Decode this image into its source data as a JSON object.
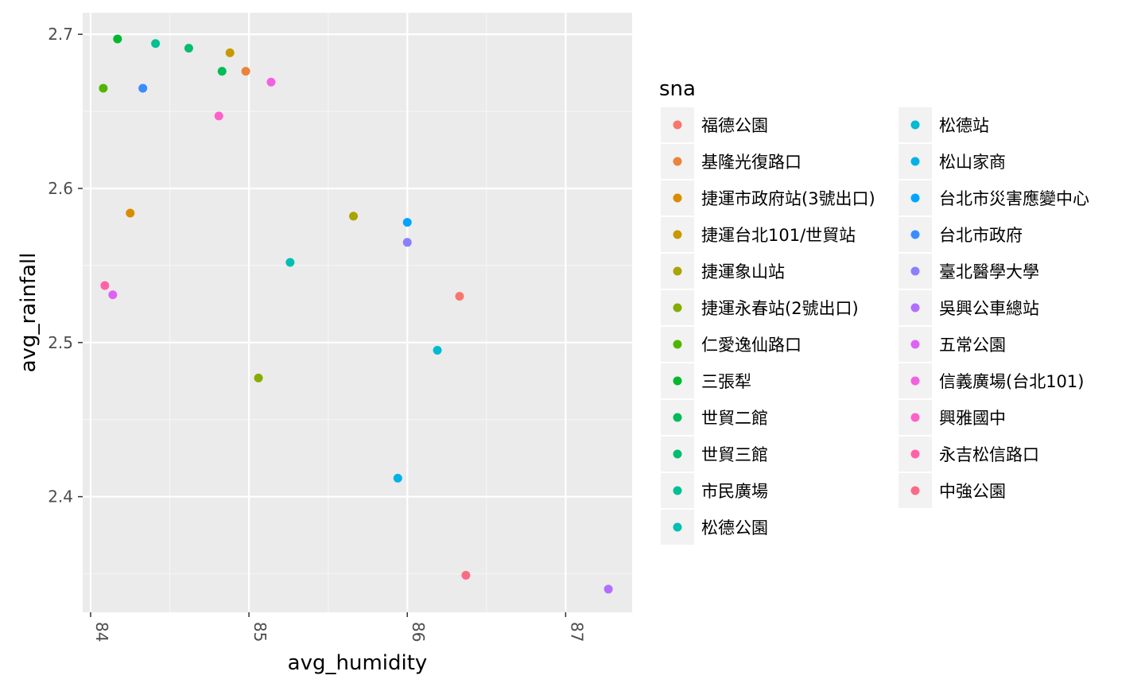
{
  "chart_data": {
    "type": "scatter",
    "xlabel": "avg_humidity",
    "ylabel": "avg_rainfall",
    "xlim": [
      83.95,
      87.42
    ],
    "ylim": [
      2.325,
      2.714
    ],
    "x_ticks": [
      84,
      85,
      86,
      87
    ],
    "y_ticks": [
      2.4,
      2.5,
      2.6,
      2.7
    ],
    "grid": true,
    "legend": {
      "title": "sna",
      "placement": "right",
      "columns": 2
    },
    "series": [
      {
        "name": "福德公園",
        "color": "#F8766D",
        "points": [
          [
            86.33,
            2.53
          ]
        ]
      },
      {
        "name": "基隆光復路口",
        "color": "#EC823C",
        "points": [
          [
            84.98,
            2.676
          ]
        ]
      },
      {
        "name": "捷運市政府站(3號出口)",
        "color": "#DA8C00",
        "points": [
          [
            84.25,
            2.584
          ]
        ]
      },
      {
        "name": "捷運台北101/世貿站",
        "color": "#C49A00",
        "points": [
          [
            84.88,
            2.688
          ]
        ]
      },
      {
        "name": "捷運象山站",
        "color": "#A9A400",
        "points": [
          [
            85.66,
            2.582
          ]
        ]
      },
      {
        "name": "捷運永春站(2號出口)",
        "color": "#86AC00",
        "points": [
          [
            85.06,
            2.477
          ]
        ]
      },
      {
        "name": "仁愛逸仙路口",
        "color": "#53B400",
        "points": [
          [
            84.08,
            2.665
          ]
        ]
      },
      {
        "name": "三張犁",
        "color": "#00B82B",
        "points": [
          [
            84.17,
            2.697
          ]
        ]
      },
      {
        "name": "世貿二館",
        "color": "#00BC56",
        "points": [
          [
            84.83,
            2.676
          ]
        ]
      },
      {
        "name": "世貿三館",
        "color": "#00BE6F",
        "points": [
          [
            84.62,
            2.691
          ]
        ]
      },
      {
        "name": "市民廣場",
        "color": "#00C094",
        "points": [
          [
            84.41,
            2.694
          ]
        ]
      },
      {
        "name": "松德公園",
        "color": "#00BFB3",
        "points": [
          [
            85.26,
            2.552
          ]
        ]
      },
      {
        "name": "松德站",
        "color": "#00BAD3",
        "points": [
          [
            86.19,
            2.495
          ]
        ]
      },
      {
        "name": "松山家商",
        "color": "#00B2E7",
        "points": [
          [
            85.94,
            2.412
          ]
        ]
      },
      {
        "name": "台北市災害應變中心",
        "color": "#00A5FF",
        "points": [
          [
            86.0,
            2.578
          ]
        ]
      },
      {
        "name": "台北市政府",
        "color": "#3A8CFF",
        "points": [
          [
            84.33,
            2.665
          ]
        ]
      },
      {
        "name": "臺北醫學大學",
        "color": "#8B7EFF",
        "points": [
          [
            86.0,
            2.565
          ]
        ]
      },
      {
        "name": "吳興公車總站",
        "color": "#B26EFF",
        "points": [
          [
            87.27,
            2.34
          ]
        ]
      },
      {
        "name": "五常公園",
        "color": "#DF63F3",
        "points": [
          [
            84.14,
            2.531
          ]
        ]
      },
      {
        "name": "信義廣場(台北101)",
        "color": "#F261DF",
        "points": [
          [
            85.14,
            2.669
          ]
        ]
      },
      {
        "name": "興雅國中",
        "color": "#FF61C9",
        "points": [
          [
            84.81,
            2.647
          ]
        ]
      },
      {
        "name": "永吉松信路口",
        "color": "#FF62A9",
        "points": [
          [
            84.09,
            2.537
          ]
        ]
      },
      {
        "name": "中強公園",
        "color": "#FC6B86",
        "points": [
          [
            86.37,
            2.349
          ]
        ]
      }
    ]
  },
  "colors": {
    "panel": "#EBEBEB",
    "grid_major": "#FFFFFF",
    "grid_minor": "#F5F5F5",
    "legend_key_bg": "#F2F2F2",
    "tick_color": "#333333"
  }
}
